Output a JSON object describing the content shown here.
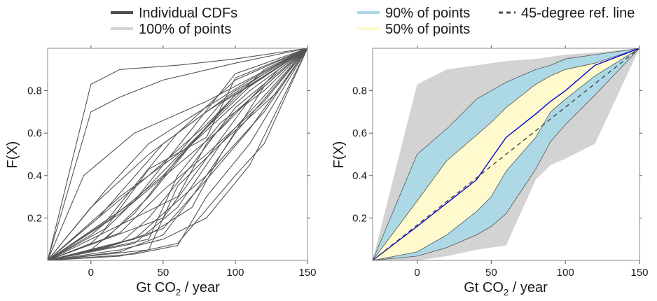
{
  "legend": {
    "left": [
      {
        "label": "Individual CDFs",
        "color": "#4d4d4d",
        "style": "solid"
      },
      {
        "label": "100% of points",
        "color": "#d3d3d3",
        "style": "solid"
      }
    ],
    "right": [
      {
        "label": "90% of points",
        "color": "#add8e6",
        "style": "solid"
      },
      {
        "label": "50% of points",
        "color": "#fffacd",
        "style": "solid"
      },
      {
        "label": "45-degree ref. line",
        "color": "#4d4d4d",
        "style": "dashed"
      }
    ]
  },
  "axes": {
    "ylabel": "F(X)",
    "xlabel_prefix": "Gt CO",
    "xlabel_sub": "2",
    "xlabel_suffix": " / year",
    "xticks": [
      "0",
      "50",
      "100",
      "150"
    ],
    "yticks": [
      "0.2",
      "0.4",
      "0.6",
      "0.8"
    ]
  },
  "colors": {
    "cdf_line": "#555555",
    "band100": "#d3d3d3",
    "band90": "#add8e6",
    "band50": "#fffacd",
    "median": "#0000dd",
    "ref_line": "#444444"
  },
  "chart_data": [
    {
      "type": "line",
      "title": "",
      "xlabel": "Gt CO2 / year",
      "ylabel": "F(X)",
      "xlim": [
        -30,
        150
      ],
      "ylim": [
        0,
        1
      ],
      "series": [
        {
          "x": [
            -30,
            0,
            20,
            60,
            100,
            150
          ],
          "y": [
            0,
            0.83,
            0.9,
            0.92,
            0.95,
            1
          ]
        },
        {
          "x": [
            -30,
            0,
            20,
            50,
            100,
            150
          ],
          "y": [
            0,
            0.7,
            0.77,
            0.85,
            0.93,
            1
          ]
        },
        {
          "x": [
            -30,
            -5,
            30,
            80,
            150
          ],
          "y": [
            0,
            0.4,
            0.6,
            0.75,
            1
          ]
        },
        {
          "x": [
            -30,
            10,
            40,
            70,
            110,
            150
          ],
          "y": [
            0,
            0.33,
            0.55,
            0.68,
            0.85,
            1
          ]
        },
        {
          "x": [
            -30,
            0,
            40,
            80,
            120,
            150
          ],
          "y": [
            0,
            0.25,
            0.5,
            0.7,
            0.88,
            1
          ]
        },
        {
          "x": [
            -30,
            5,
            50,
            100,
            150
          ],
          "y": [
            0,
            0.2,
            0.55,
            0.8,
            1
          ]
        },
        {
          "x": [
            -30,
            10,
            30,
            60,
            100,
            150
          ],
          "y": [
            0,
            0.18,
            0.35,
            0.6,
            0.85,
            1
          ]
        },
        {
          "x": [
            -30,
            20,
            60,
            90,
            130,
            150
          ],
          "y": [
            0,
            0.22,
            0.45,
            0.62,
            0.9,
            1
          ]
        },
        {
          "x": [
            -30,
            0,
            50,
            90,
            120,
            150
          ],
          "y": [
            0,
            0.12,
            0.4,
            0.7,
            0.9,
            1
          ]
        },
        {
          "x": [
            -30,
            10,
            40,
            70,
            110,
            150
          ],
          "y": [
            0,
            0.1,
            0.3,
            0.55,
            0.8,
            1
          ]
        },
        {
          "x": [
            -30,
            20,
            50,
            80,
            120,
            150
          ],
          "y": [
            0,
            0.13,
            0.33,
            0.5,
            0.75,
            1
          ]
        },
        {
          "x": [
            -30,
            0,
            30,
            60,
            100,
            150
          ],
          "y": [
            0,
            0.05,
            0.22,
            0.48,
            0.78,
            1
          ]
        },
        {
          "x": [
            -30,
            20,
            40,
            70,
            100,
            150
          ],
          "y": [
            0,
            0.08,
            0.2,
            0.45,
            0.72,
            1
          ]
        },
        {
          "x": [
            -30,
            10,
            50,
            80,
            110,
            150
          ],
          "y": [
            0,
            0.06,
            0.15,
            0.38,
            0.62,
            1
          ]
        },
        {
          "x": [
            -30,
            30,
            60,
            80,
            120,
            150
          ],
          "y": [
            0,
            0.1,
            0.28,
            0.4,
            0.7,
            1
          ]
        },
        {
          "x": [
            -30,
            20,
            50,
            70,
            100,
            150
          ],
          "y": [
            0,
            0.04,
            0.12,
            0.3,
            0.6,
            1
          ]
        },
        {
          "x": [
            -30,
            40,
            70,
            90,
            120,
            150
          ],
          "y": [
            0,
            0.12,
            0.25,
            0.5,
            0.82,
            1
          ]
        },
        {
          "x": [
            -30,
            30,
            60,
            90,
            150
          ],
          "y": [
            0,
            0.08,
            0.25,
            0.55,
            1
          ]
        },
        {
          "x": [
            -30,
            20,
            50,
            80,
            110,
            150
          ],
          "y": [
            0,
            0.05,
            0.1,
            0.2,
            0.45,
            1
          ]
        },
        {
          "x": [
            -30,
            40,
            60,
            90,
            130,
            150
          ],
          "y": [
            0,
            0.05,
            0.35,
            0.55,
            0.8,
            1
          ]
        },
        {
          "x": [
            -30,
            30,
            60,
            80,
            110,
            150
          ],
          "y": [
            0,
            0.03,
            0.07,
            0.3,
            0.55,
            1
          ]
        },
        {
          "x": [
            -30,
            20,
            60,
            100,
            120,
            150
          ],
          "y": [
            0,
            0.02,
            0.08,
            0.4,
            0.55,
            1
          ]
        },
        {
          "x": [
            -30,
            40,
            60,
            90,
            120,
            150
          ],
          "y": [
            0,
            0.1,
            0.4,
            0.65,
            0.8,
            1
          ]
        },
        {
          "x": [
            -30,
            60,
            80,
            100,
            130,
            150
          ],
          "y": [
            0,
            0.3,
            0.55,
            0.7,
            0.88,
            1
          ]
        },
        {
          "x": [
            -30,
            10,
            40,
            80,
            100,
            150
          ],
          "y": [
            0,
            0.15,
            0.43,
            0.58,
            0.86,
            1
          ]
        },
        {
          "x": [
            -30,
            30,
            70,
            100,
            150
          ],
          "y": [
            0,
            0.28,
            0.62,
            0.88,
            1
          ]
        },
        {
          "x": [
            -30,
            20,
            60,
            90,
            150
          ],
          "y": [
            0,
            0.3,
            0.5,
            0.74,
            1
          ]
        },
        {
          "x": [
            -30,
            50,
            80,
            110,
            150
          ],
          "y": [
            0,
            0.2,
            0.48,
            0.76,
            1
          ]
        },
        {
          "x": [
            -30,
            0,
            30,
            70,
            110,
            150
          ],
          "y": [
            0,
            0.08,
            0.28,
            0.56,
            0.82,
            1
          ]
        },
        {
          "x": [
            -30,
            40,
            80,
            100,
            150
          ],
          "y": [
            0,
            0.4,
            0.64,
            0.78,
            1
          ]
        }
      ]
    },
    {
      "type": "area",
      "title": "",
      "xlabel": "Gt CO2 / year",
      "ylabel": "F(X)",
      "xlim": [
        -30,
        150
      ],
      "ylim": [
        0,
        1
      ],
      "x": [
        -30,
        0,
        20,
        40,
        50,
        60,
        80,
        90,
        100,
        120,
        150
      ],
      "series": [
        {
          "band": "100%",
          "upper": [
            0,
            0.83,
            0.9,
            0.92,
            0.93,
            0.94,
            0.95,
            0.96,
            0.97,
            0.98,
            1
          ],
          "lower": [
            0,
            0.0,
            0.02,
            0.05,
            0.06,
            0.07,
            0.38,
            0.45,
            0.48,
            0.55,
            1
          ]
        },
        {
          "band": "90%",
          "upper": [
            0,
            0.5,
            0.62,
            0.76,
            0.8,
            0.84,
            0.9,
            0.92,
            0.95,
            0.97,
            1
          ],
          "lower": [
            0,
            0.02,
            0.06,
            0.12,
            0.16,
            0.22,
            0.43,
            0.56,
            0.64,
            0.78,
            1
          ]
        },
        {
          "band": "50%",
          "upper": [
            0,
            0.28,
            0.47,
            0.59,
            0.65,
            0.72,
            0.83,
            0.87,
            0.9,
            0.93,
            1
          ],
          "lower": [
            0,
            0.04,
            0.12,
            0.23,
            0.3,
            0.42,
            0.58,
            0.7,
            0.76,
            0.87,
            1
          ]
        },
        {
          "name": "median",
          "values": [
            0,
            0.16,
            0.27,
            0.38,
            0.48,
            0.58,
            0.69,
            0.75,
            0.8,
            0.92,
            1
          ]
        },
        {
          "name": "45-degree ref. line",
          "values": [
            0,
            0.1667,
            0.2778,
            0.3889,
            0.4444,
            0.5,
            0.6111,
            0.6667,
            0.7222,
            0.8333,
            1
          ]
        }
      ]
    }
  ]
}
